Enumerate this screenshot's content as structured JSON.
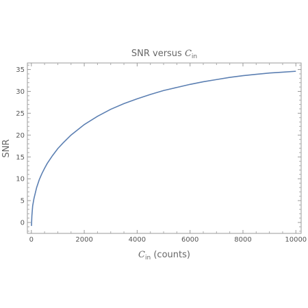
{
  "chart_data": {
    "type": "line",
    "title": {
      "prefix": "SNR versus ",
      "var": "C",
      "sub": "in"
    },
    "xlabel": {
      "var": "C",
      "sub": "in",
      "suffix": " (counts)"
    },
    "ylabel": "SNR",
    "xlim": [
      -150,
      10200
    ],
    "ylim": [
      -2.5,
      36.5
    ],
    "x_ticks": [
      0,
      2000,
      4000,
      6000,
      8000,
      10000
    ],
    "y_ticks": [
      0,
      5,
      10,
      15,
      20,
      25,
      30,
      35
    ],
    "grid": false,
    "color": "#5b7fb2",
    "series": [
      {
        "x": [
          5,
          20,
          50,
          100,
          200,
          300,
          400,
          500,
          600,
          800,
          1000,
          1200,
          1500,
          2000,
          2500,
          3000,
          3500,
          4000,
          4500,
          5000,
          5500,
          6000,
          6500,
          7000,
          7500,
          8000,
          8500,
          9000,
          9500,
          10000
        ],
        "values": [
          -0.8,
          1.5,
          3.8,
          5.5,
          8.0,
          9.8,
          11.2,
          12.4,
          13.5,
          15.3,
          16.9,
          18.2,
          20.0,
          22.4,
          24.3,
          25.9,
          27.2,
          28.3,
          29.3,
          30.2,
          30.9,
          31.6,
          32.2,
          32.7,
          33.2,
          33.6,
          33.9,
          34.2,
          34.4,
          34.6
        ]
      }
    ]
  }
}
